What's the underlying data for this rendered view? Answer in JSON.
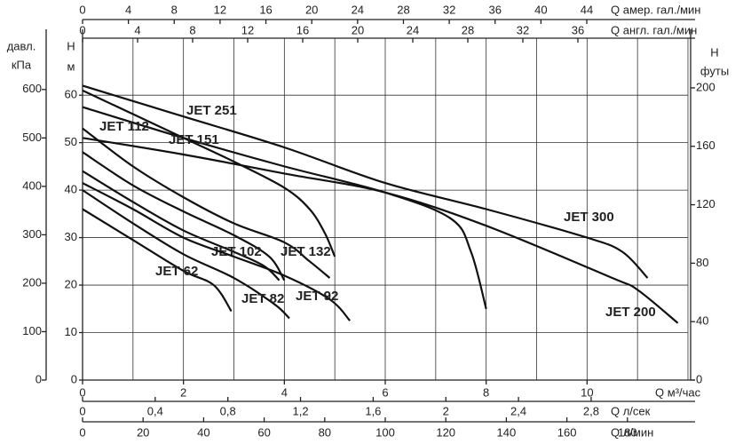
{
  "chart_data": {
    "type": "line",
    "line_color": "#111111",
    "grid": true,
    "xlabel": "Q м³/час",
    "xlim": [
      0,
      12
    ],
    "xticks": [
      0,
      2,
      4,
      6,
      8,
      10
    ],
    "xminorticks": [
      1,
      3,
      5,
      7,
      9,
      11,
      12
    ],
    "ylabel": [
      "H",
      "м"
    ],
    "ylim": [
      0,
      72
    ],
    "yticks": [
      0,
      10,
      20,
      30,
      40,
      50,
      60
    ],
    "axes": [
      {
        "position": "top-outer",
        "label": "Q амер. гал./мин",
        "lim": [
          0,
          52.83
        ],
        "ticks": [
          0,
          4,
          8,
          12,
          16,
          20,
          24,
          28,
          32,
          36,
          40,
          44
        ]
      },
      {
        "position": "top-inner",
        "label": "Q англ. гал./мин",
        "lim": [
          0,
          44
        ],
        "ticks": [
          0,
          4,
          8,
          12,
          16,
          20,
          24,
          28,
          32,
          36
        ]
      },
      {
        "position": "bottom-2",
        "label": "Q л/сек",
        "lim": [
          0,
          3.333
        ],
        "ticks": [
          0,
          {
            "value": 0.4,
            "label": "0,4"
          },
          {
            "value": 0.8,
            "label": "0,8"
          },
          {
            "value": 1.2,
            "label": "1,2"
          },
          {
            "value": 1.6,
            "label": "1,6"
          },
          2,
          {
            "value": 2.4,
            "label": "2,4"
          },
          {
            "value": 2.8,
            "label": "2,8"
          }
        ]
      },
      {
        "position": "bottom-3",
        "label": "Q л/мин",
        "lim": [
          0,
          200
        ],
        "ticks": [
          0,
          20,
          40,
          60,
          80,
          100,
          120,
          140,
          160,
          180
        ]
      },
      {
        "position": "left-outer",
        "label": [
          "давл.",
          "кПа"
        ],
        "lim": [
          0,
          706
        ],
        "ticks": [
          0,
          100,
          200,
          300,
          400,
          500,
          600
        ]
      },
      {
        "position": "right",
        "label": [
          "H",
          "футы"
        ],
        "lim": [
          0,
          234
        ],
        "ticks": [
          0,
          40,
          80,
          120,
          160,
          200
        ]
      }
    ],
    "series": [
      {
        "name": "JET 300",
        "x": [
          0,
          2,
          4,
          6,
          8,
          10,
          10.7,
          11.2
        ],
        "values": [
          62,
          55.5,
          49,
          41.5,
          36,
          30,
          27,
          21.5
        ]
      },
      {
        "name": "JET 251",
        "x": [
          0,
          1,
          2,
          3,
          4,
          4.5,
          4.8,
          5.0
        ],
        "values": [
          61,
          56,
          51,
          46,
          40.5,
          36,
          31,
          26
        ]
      },
      {
        "name": "JET 151",
        "x": [
          0,
          2,
          4,
          6,
          7.3,
          7.7,
          8.0
        ],
        "values": [
          57.5,
          51,
          45,
          39.5,
          34,
          27,
          15
        ]
      },
      {
        "name": "JET 200",
        "x": [
          0,
          2,
          4,
          6,
          8,
          10.5,
          11,
          11.8
        ],
        "values": [
          51,
          47.5,
          43.5,
          39.5,
          32.5,
          21.5,
          19,
          12
        ]
      },
      {
        "name": "JET 132",
        "x": [
          0,
          1,
          2,
          3,
          4,
          4.5,
          4.9
        ],
        "values": [
          53,
          45,
          38.5,
          33,
          29,
          25,
          21.5
        ]
      },
      {
        "name": "JET 112",
        "x": [
          0,
          1,
          2,
          3,
          3.7,
          4.0
        ],
        "values": [
          48,
          41,
          35.5,
          30.5,
          26,
          21
        ]
      },
      {
        "name": "JET 102",
        "x": [
          0,
          1,
          2,
          3,
          3.6,
          3.9
        ],
        "values": [
          44,
          37.5,
          31.5,
          27,
          24,
          21
        ]
      },
      {
        "name": "JET 92",
        "x": [
          0,
          1,
          2,
          3,
          4,
          4.9,
          5.3
        ],
        "values": [
          41.5,
          36,
          30,
          26,
          22,
          17,
          12.5
        ]
      },
      {
        "name": "JET 82",
        "x": [
          0,
          1,
          2,
          3,
          3.8,
          4.1
        ],
        "values": [
          40,
          33,
          26.5,
          21.5,
          16,
          13
        ]
      },
      {
        "name": "JET 62",
        "x": [
          0,
          1,
          2,
          2.6,
          2.95
        ],
        "values": [
          36,
          29.5,
          23,
          20,
          14.5
        ]
      }
    ]
  }
}
